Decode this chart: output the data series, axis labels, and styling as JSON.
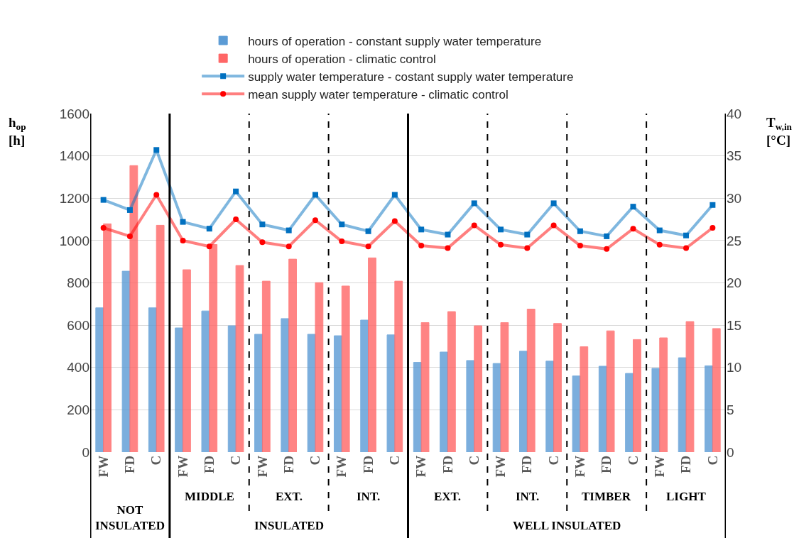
{
  "chart_data": {
    "type": "bar",
    "categories": [
      "FW",
      "FD",
      "C",
      "FW",
      "FD",
      "C",
      "FW",
      "FD",
      "C",
      "FW",
      "FD",
      "C",
      "FW",
      "FD",
      "C",
      "FW",
      "FD",
      "C",
      "FW",
      "FD",
      "C",
      "FW",
      "FD",
      "C"
    ],
    "series": [
      {
        "name": "hours of operation - constant supply water temperature",
        "color": "#5b9bd5",
        "values": [
          682,
          855,
          682,
          587,
          667,
          597,
          557,
          631,
          557,
          550,
          624,
          554,
          424,
          473,
          433,
          419,
          477,
          430,
          360,
          406,
          372,
          396,
          446,
          408
        ]
      },
      {
        "name": "hours of operation - climatic control",
        "color": "#ff6666",
        "values": [
          1079,
          1354,
          1072,
          862,
          981,
          882,
          808,
          912,
          801,
          785,
          918,
          808,
          612,
          664,
          597,
          612,
          676,
          608,
          498,
          573,
          532,
          540,
          617,
          584
        ]
      },
      {
        "name": "supply water temperature - costant supply water temperature",
        "type": "line",
        "axis": "y2",
        "marker": "square",
        "color": "#0070c0",
        "values": [
          29.8,
          28.6,
          35.7,
          27.2,
          26.4,
          30.8,
          26.9,
          26.2,
          30.4,
          26.9,
          26.1,
          30.4,
          26.3,
          25.7,
          29.4,
          26.3,
          25.7,
          29.4,
          26.1,
          25.5,
          29.0,
          26.2,
          25.6,
          29.2
        ]
      },
      {
        "name": "mean supply water temperature - climatic control",
        "type": "line",
        "axis": "y2",
        "marker": "circle",
        "color": "#ff0000",
        "values": [
          26.5,
          25.5,
          30.4,
          25.0,
          24.3,
          27.5,
          24.8,
          24.3,
          27.4,
          24.9,
          24.3,
          27.3,
          24.4,
          24.1,
          26.8,
          24.5,
          24.1,
          26.8,
          24.4,
          24.0,
          26.4,
          24.5,
          24.1,
          26.5
        ]
      }
    ],
    "ylabel": "h$_{op}$ [h]",
    "y2label": "T$_{w,in}$ [°C]",
    "ylim": [
      0,
      1600
    ],
    "yticks": [
      0,
      200,
      400,
      600,
      800,
      1000,
      1200,
      1400,
      1600
    ],
    "y2lim": [
      0,
      40
    ],
    "y2ticks": [
      0,
      5,
      10,
      15,
      20,
      25,
      30,
      35,
      40
    ],
    "grid": "y",
    "legend": "top",
    "annotations": [
      "NOT INSULATED",
      "MIDDLE",
      "EXT.",
      "INT.",
      "INSULATED",
      "EXT.",
      "INT.",
      "TIMBER",
      "LIGHT",
      "WELL INSULATED"
    ]
  }
}
